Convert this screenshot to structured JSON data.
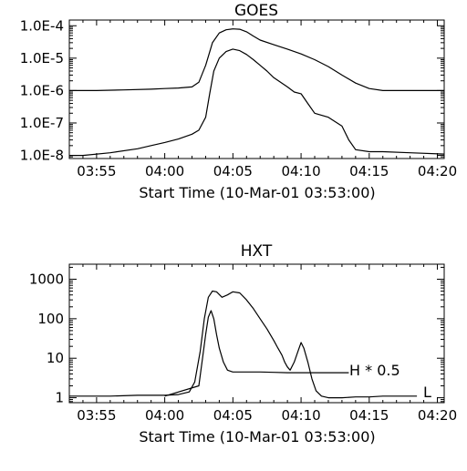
{
  "chart_data": [
    {
      "type": "line",
      "title": "GOES",
      "xlabel": "Start Time (10-Mar-01 03:53:00)",
      "x_ticks": [
        "03:55",
        "04:00",
        "04:05",
        "04:10",
        "04:15",
        "04:20"
      ],
      "x_tick_minutes": [
        55,
        60,
        65,
        70,
        75,
        80
      ],
      "xlim_minutes": [
        53,
        80.5
      ],
      "y_scale": "log",
      "ylim": [
        8e-09,
        0.00015
      ],
      "y_ticks": [
        "1.0E-4",
        "1.0E-5",
        "1.0E-6",
        "1.0E-7",
        "1.0E-8"
      ],
      "y_tick_values": [
        0.0001,
        1e-05,
        1e-06,
        1e-07,
        1e-08
      ],
      "series": [
        {
          "x": [
            53,
            55,
            57,
            59,
            60,
            61,
            62,
            62.5,
            63,
            63.5,
            64,
            64.5,
            65,
            65.5,
            66,
            66.5,
            67,
            68,
            69,
            70,
            71,
            72,
            73,
            74,
            75,
            76,
            78,
            80.5
          ],
          "y": [
            1e-06,
            1e-06,
            1.05e-06,
            1.1e-06,
            1.15e-06,
            1.2e-06,
            1.3e-06,
            1.8e-06,
            6e-06,
            3e-05,
            6e-05,
            7.5e-05,
            8e-05,
            7.8e-05,
            6.5e-05,
            4.8e-05,
            3.6e-05,
            2.6e-05,
            1.9e-05,
            1.35e-05,
            9e-06,
            5.5e-06,
            3e-06,
            1.7e-06,
            1.15e-06,
            1e-06,
            1e-06,
            1e-06
          ]
        },
        {
          "x": [
            53,
            54,
            56,
            58,
            59,
            60,
            61,
            62,
            62.5,
            63,
            63.3,
            63.6,
            64,
            64.5,
            65,
            65.5,
            66,
            66.5,
            67,
            67.5,
            68,
            69,
            69.5,
            70,
            70.5,
            71,
            72,
            73,
            73.5,
            74,
            75,
            76,
            78,
            80.5
          ],
          "y": [
            1e-08,
            1e-08,
            1.2e-08,
            1.6e-08,
            2e-08,
            2.5e-08,
            3.2e-08,
            4.5e-08,
            6e-08,
            1.5e-07,
            8e-07,
            4e-06,
            1e-05,
            1.6e-05,
            1.9e-05,
            1.7e-05,
            1.3e-05,
            9e-06,
            6e-06,
            4e-06,
            2.5e-06,
            1.3e-06,
            9e-07,
            8e-07,
            4e-07,
            2e-07,
            1.5e-07,
            8e-08,
            3e-08,
            1.5e-08,
            1.3e-08,
            1.3e-08,
            1.2e-08,
            1.1e-08
          ]
        }
      ]
    },
    {
      "type": "line",
      "title": "HXT",
      "xlabel": "Start Time (10-Mar-01 03:53:00)",
      "x_ticks": [
        "03:55",
        "04:00",
        "04:05",
        "04:10",
        "04:15",
        "04:20"
      ],
      "x_tick_minutes": [
        55,
        60,
        65,
        70,
        75,
        80
      ],
      "xlim_minutes": [
        53,
        80.5
      ],
      "y_scale": "log",
      "ylim": [
        0.75,
        2400
      ],
      "y_ticks": [
        "1000",
        "100",
        "10",
        "1"
      ],
      "y_tick_values": [
        1000,
        100,
        10,
        1
      ],
      "annotations": [
        "H * 0.5",
        "L"
      ],
      "series": [
        {
          "name": "L",
          "x": [
            53,
            56,
            58,
            60,
            61,
            61.8,
            62.2,
            62.6,
            62.9,
            63.2,
            63.5,
            63.8,
            64.2,
            64.6,
            65,
            65.5,
            66,
            66.5,
            67,
            67.5,
            68,
            68.3,
            68.6,
            68.8,
            69,
            69.2,
            69.5,
            69.8,
            70,
            70.2,
            70.5,
            70.8,
            71.1,
            71.5,
            72,
            73,
            74,
            75,
            76,
            78,
            78.5
          ],
          "y": [
            1.1,
            1.1,
            1.15,
            1.15,
            1.2,
            1.4,
            2.5,
            15,
            100,
            350,
            500,
            480,
            350,
            400,
            480,
            450,
            300,
            180,
            100,
            55,
            28,
            18,
            12,
            8,
            6,
            5,
            8,
            16,
            25,
            18,
            8,
            3,
            1.5,
            1.1,
            1.0,
            1.0,
            1.05,
            1.05,
            1.1,
            1.1,
            1.1
          ]
        },
        {
          "name": "H * 0.5",
          "x": [
            60,
            62.5,
            62.8,
            63,
            63.2,
            63.4,
            63.6,
            63.8,
            64,
            64.3,
            64.6,
            65,
            66,
            67,
            68,
            69,
            70,
            71,
            72,
            73,
            73.5
          ],
          "y": [
            1.1,
            2,
            12,
            40,
            110,
            160,
            100,
            40,
            18,
            8,
            5,
            4.5,
            4.5,
            4.5,
            4.4,
            4.3,
            4.3,
            4.3,
            4.3,
            4.3,
            4.3
          ]
        }
      ]
    }
  ]
}
